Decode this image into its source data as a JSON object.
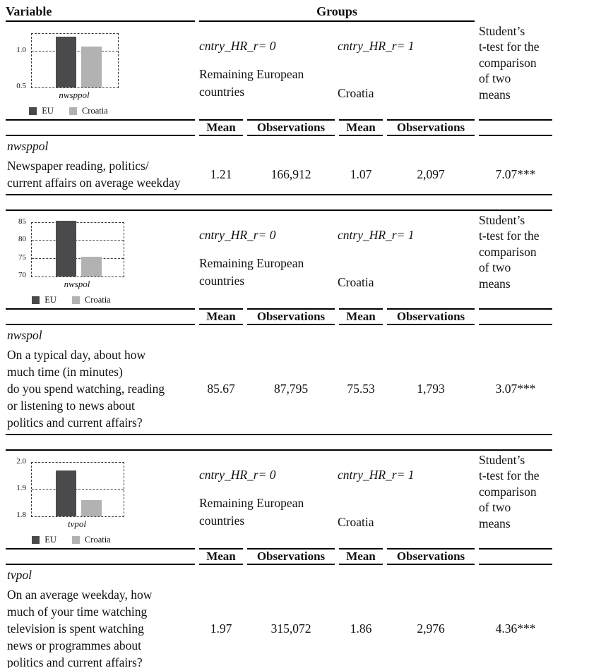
{
  "table": {
    "variable_header": "Variable",
    "groups_header": "Groups",
    "mean_label": "Mean",
    "obs_label": "Observations",
    "ttest_header": "Student’s\nt-test for the\ncomparison\nof two\nmeans",
    "group0": {
      "code": "cntry_HR_r= 0",
      "name": "Remaining European\ncountries"
    },
    "group1": {
      "code": "cntry_HR_r= 1",
      "name": "Croatia"
    }
  },
  "colors": {
    "eu_bar": "#4a4a4d",
    "croatia_bar": "#b2b2b2",
    "rule": "#000000"
  },
  "sections": [
    {
      "variable": "nwsppol",
      "description": "Newspaper reading, politics/\ncurrent affairs on average weekday",
      "group0": {
        "mean": "1.21",
        "observations": "166,912"
      },
      "group1": {
        "mean": "1.07",
        "observations": "2,097"
      },
      "ttest": "7.07***"
    },
    {
      "variable": "nwspol",
      "description": "On a typical day, about how\nmuch time (in minutes)\ndo you spend watching, reading\nor listening to news about\npolitics and current affairs?",
      "group0": {
        "mean": "85.67",
        "observations": "87,795"
      },
      "group1": {
        "mean": "75.53",
        "observations": "1,793"
      },
      "ttest": "3.07***"
    },
    {
      "variable": "tvpol",
      "description": "On an average weekday, how\nmuch of your time watching\ntelevision is spent watching\nnews or programmes about\npolitics and current affairs?",
      "group0": {
        "mean": "1.97",
        "observations": "315,072"
      },
      "group1": {
        "mean": "1.86",
        "observations": "2,976"
      },
      "ttest": "4.36***"
    }
  ],
  "chart_data": [
    {
      "type": "bar",
      "xlabel": "nwsppol",
      "categories": [
        "EU",
        "Croatia"
      ],
      "values": [
        1.21,
        1.07
      ],
      "ylim": [
        0.5,
        1.25
      ],
      "yticks": [
        0.5,
        1.0
      ],
      "ytick_labels": [
        "0.5",
        "1.0"
      ],
      "legend": [
        "EU",
        "Croatia"
      ],
      "bar_colors": [
        "#4a4a4d",
        "#b2b2b2"
      ],
      "grid": "dashed",
      "legend_position": "bottom"
    },
    {
      "type": "bar",
      "xlabel": "nwspol",
      "categories": [
        "EU",
        "Croatia"
      ],
      "values": [
        85.67,
        75.53
      ],
      "ylim": [
        70,
        85
      ],
      "yticks": [
        70,
        75,
        80,
        85
      ],
      "ytick_labels": [
        "70",
        "75",
        "80",
        "85"
      ],
      "legend": [
        "EU",
        "Croatia"
      ],
      "bar_colors": [
        "#4a4a4d",
        "#b2b2b2"
      ],
      "grid": "dashed",
      "legend_position": "bottom"
    },
    {
      "type": "bar",
      "xlabel": "tvpol",
      "categories": [
        "EU",
        "Croatia"
      ],
      "values": [
        1.97,
        1.86
      ],
      "ylim": [
        1.8,
        2.0
      ],
      "yticks": [
        1.8,
        1.9,
        2.0
      ],
      "ytick_labels": [
        "1.8",
        "1.9",
        "2.0"
      ],
      "legend": [
        "EU",
        "Croatia"
      ],
      "bar_colors": [
        "#4a4a4d",
        "#b2b2b2"
      ],
      "grid": "dashed",
      "legend_position": "bottom"
    }
  ]
}
